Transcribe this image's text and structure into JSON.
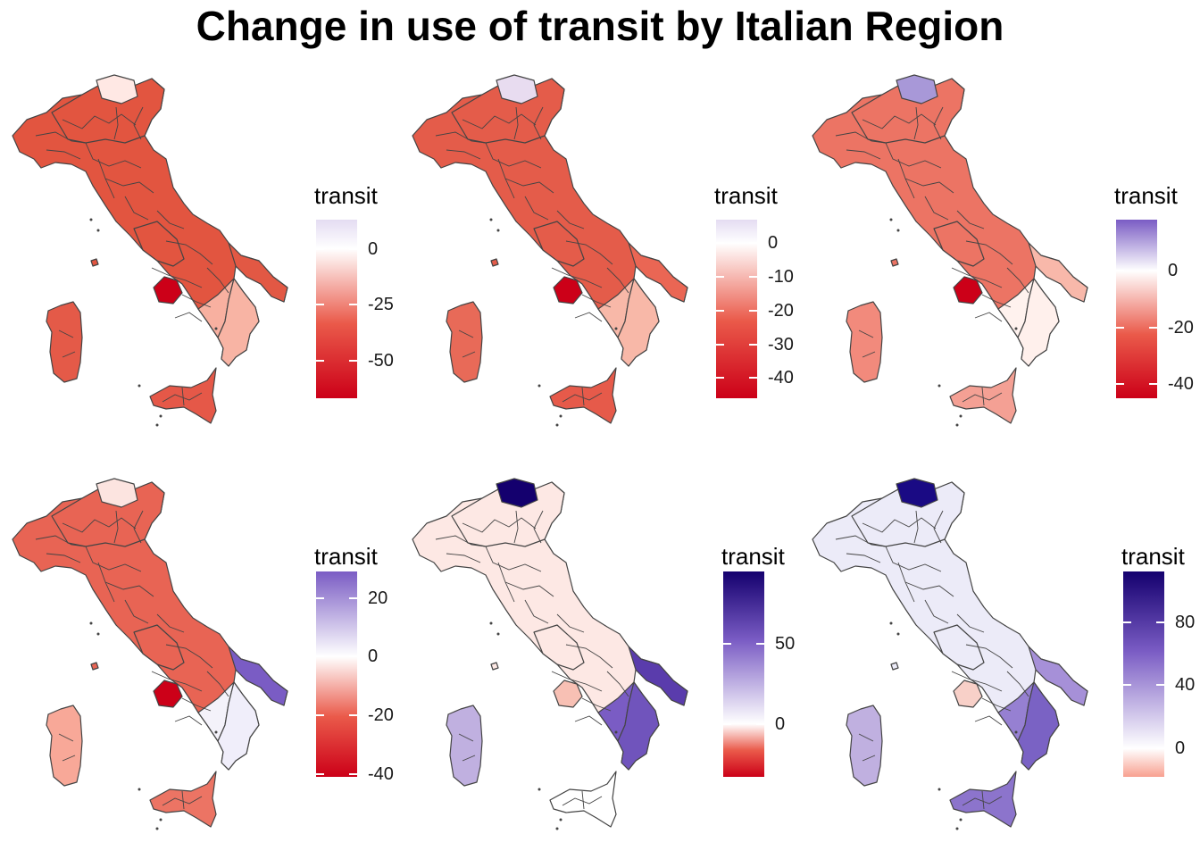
{
  "title": "Change in use of transit by Italian Region",
  "colors": {
    "low": "#cc0018",
    "mid_red": "#ea5a4a",
    "light_red": "#ffd1c8",
    "white": "#ffffff",
    "light_purple": "#c8b8e0",
    "mid_purple": "#7a5cc4",
    "high": "#14006e",
    "na": "#666666",
    "border": "#444444"
  },
  "panels": [
    {
      "id": "p1",
      "legend_title": "transit",
      "scale_min": -67,
      "scale_max": 13,
      "ticks": [
        0,
        -25,
        -50
      ],
      "tick_labels": [
        "0",
        "-25",
        "-50"
      ],
      "main_shade": "#e25540",
      "sicily_shade": "#e55848",
      "sardinia_shade": "#e45a48",
      "south_shade": "#f8b0a0",
      "north_spot_shade": "#ffe8e4",
      "center_dark": "#cc0018",
      "apulia_shade": "#e25844",
      "calabria_shade": "#f8b4a4"
    },
    {
      "id": "p2",
      "legend_title": "transit",
      "scale_min": -46,
      "scale_max": 7,
      "ticks": [
        0,
        -10,
        -20,
        -30,
        -40
      ],
      "tick_labels": [
        "0",
        "-10",
        "-20",
        "-30",
        "-40"
      ],
      "main_shade": "#e45c4a",
      "sicily_shade": "#e65a4a",
      "sardinia_shade": "#e86a58",
      "south_shade": "#f8b8a8",
      "north_spot_shade": "#e8dcf0",
      "center_dark": "#cc0018",
      "apulia_shade": "#ea6654",
      "calabria_shade": "#f8b8a8"
    },
    {
      "id": "p3",
      "legend_title": "transit",
      "scale_min": -45,
      "scale_max": 18,
      "ticks": [
        0,
        -20,
        -40
      ],
      "tick_labels": [
        "0",
        "-20",
        "-40"
      ],
      "main_shade": "#ec7464",
      "sicily_shade": "#f4a094",
      "sardinia_shade": "#f28a7c",
      "south_shade": "#fff2ee",
      "north_spot_shade": "#a898d8",
      "center_dark": "#cc0018",
      "apulia_shade": "#f8b8aa",
      "calabria_shade": "#fff0ec"
    },
    {
      "id": "p4",
      "legend_title": "transit",
      "scale_min": -41,
      "scale_max": 29,
      "ticks": [
        20,
        0,
        -20,
        -40
      ],
      "tick_labels": [
        "20",
        "0",
        "-20",
        "-40"
      ],
      "main_shade": "#e86454",
      "sicily_shade": "#ec7464",
      "sardinia_shade": "#f8a898",
      "south_shade": "#f4f2fa",
      "north_spot_shade": "#fce4e0",
      "center_dark": "#cc0018",
      "apulia_shade": "#7a5cc4",
      "calabria_shade": "#f0eefa"
    },
    {
      "id": "p5",
      "legend_title": "transit",
      "scale_min": -33,
      "scale_max": 95,
      "ticks": [
        50,
        0
      ],
      "tick_labels": [
        "50",
        "0"
      ],
      "main_shade": "#fde8e4",
      "sicily_shade": "#ffffff",
      "sardinia_shade": "#c0b0e0",
      "south_shade": "#7a5cc4",
      "north_spot_shade": "#14006e",
      "center_dark": "#f8c0b4",
      "apulia_shade": "#5a3cac",
      "calabria_shade": "#7054bc"
    },
    {
      "id": "p6",
      "legend_title": "transit",
      "scale_min": -18,
      "scale_max": 112,
      "ticks": [
        80,
        40,
        0
      ],
      "tick_labels": [
        "80",
        "40",
        "0"
      ],
      "main_shade": "#ecebf8",
      "sicily_shade": "#8c74cc",
      "sardinia_shade": "#c0b0e0",
      "south_shade": "#9680d2",
      "north_spot_shade": "#1a0a84",
      "center_dark": "#f8d0c8",
      "apulia_shade": "#a690d8",
      "calabria_shade": "#7a62c4"
    }
  ]
}
